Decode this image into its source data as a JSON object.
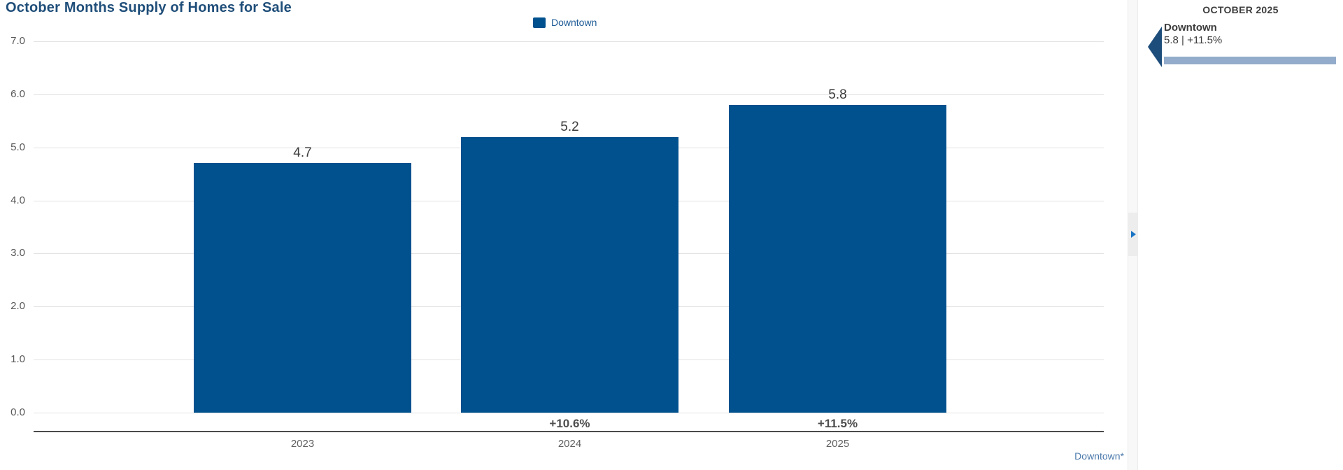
{
  "chart_data": {
    "type": "bar",
    "title": "October Months Supply of Homes for Sale",
    "categories": [
      "2023",
      "2024",
      "2025"
    ],
    "series": [
      {
        "name": "Downtown",
        "values": [
          4.7,
          5.2,
          5.8
        ]
      }
    ],
    "value_labels": [
      "4.7",
      "5.2",
      "5.8"
    ],
    "pct_change_labels": [
      "",
      "+10.6%",
      "+11.5%"
    ],
    "xlabel": "",
    "ylabel": "",
    "ylim": [
      0,
      7
    ],
    "yticks": [
      "7.0",
      "6.0",
      "5.0",
      "4.0",
      "3.0",
      "2.0",
      "1.0",
      "0.0"
    ],
    "grid": true,
    "legend_position": "top-center",
    "bar_color": "#01518E"
  },
  "legend": {
    "label": "Downtown"
  },
  "footer": {
    "series_link": "Downtown*"
  },
  "panel": {
    "heading": "OCTOBER 2025",
    "item": {
      "name": "Downtown",
      "value": "5.8 | +11.5%",
      "bar_color": "#93ACCB",
      "marker_color": "#1D4D7B"
    }
  },
  "icons": {
    "collapse_handle": "chevron-right-icon",
    "panel_marker": "triangle-left-icon"
  },
  "colors": {
    "title_text": "#1F4E79",
    "bar_fill": "#01518E",
    "legend_text": "#1E5C96",
    "link_text": "#4B79AB",
    "gridline": "#E3E3E3",
    "axis_line": "#4A4A4A",
    "tick_text": "#58585A",
    "value_text": "#3C3C3C",
    "pct_text": "#4D4D4D",
    "category_text": "#616161",
    "panel_heading_text": "#3D3D3D",
    "panel_bar_fill": "#93ACCB"
  }
}
